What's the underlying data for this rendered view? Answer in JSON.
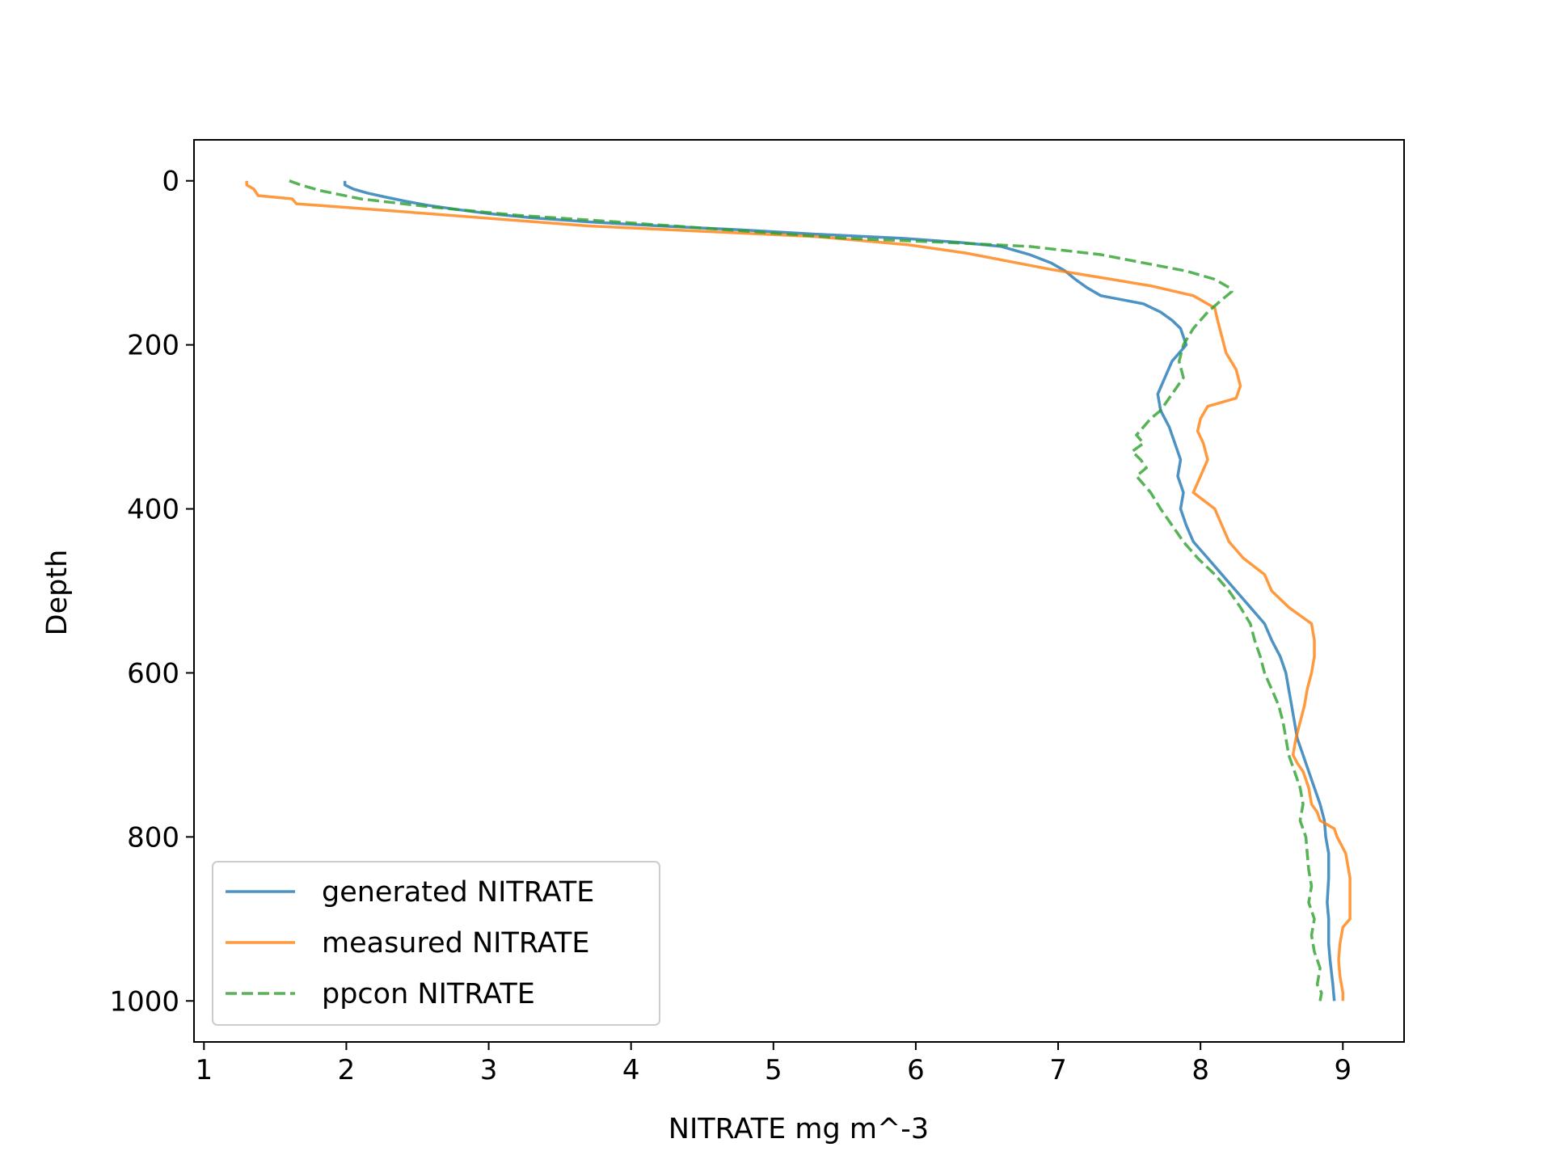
{
  "chart_data": {
    "type": "line",
    "title": "",
    "xlabel": "NITRATE mg m^-3",
    "ylabel": "Depth",
    "xlim": [
      0.93,
      9.43
    ],
    "ylim": [
      1050,
      -50
    ],
    "y_inverted": true,
    "xticks": [
      1,
      2,
      3,
      4,
      5,
      6,
      7,
      8,
      9
    ],
    "yticks": [
      0,
      200,
      400,
      600,
      800,
      1000
    ],
    "grid": false,
    "legend_position": "lower-left",
    "series": [
      {
        "name": "generated NITRATE",
        "color": "#1f77b4",
        "dash": "solid",
        "x": [
          1.99,
          1.99,
          2.05,
          2.15,
          2.28,
          2.42,
          2.58,
          2.78,
          3.0,
          3.3,
          3.7,
          4.2,
          4.8,
          5.3,
          5.9,
          6.3,
          6.6,
          6.8,
          6.95,
          7.05,
          7.12,
          7.2,
          7.3,
          7.45,
          7.6,
          7.72,
          7.8,
          7.86,
          7.88,
          7.9,
          7.85,
          7.8,
          7.75,
          7.7,
          7.72,
          7.78,
          7.82,
          7.86,
          7.84,
          7.88,
          7.86,
          7.9,
          7.95,
          8.05,
          8.15,
          8.25,
          8.35,
          8.45,
          8.5,
          8.56,
          8.6,
          8.62,
          8.64,
          8.66,
          8.68,
          8.72,
          8.76,
          8.8,
          8.84,
          8.87,
          8.88,
          8.9,
          8.9,
          8.89,
          8.9,
          8.9,
          8.91,
          8.93,
          8.94
        ],
        "y": [
          0,
          5,
          10,
          15,
          20,
          25,
          30,
          35,
          40,
          45,
          50,
          55,
          60,
          65,
          70,
          75,
          80,
          90,
          100,
          110,
          120,
          130,
          140,
          145,
          150,
          160,
          170,
          180,
          190,
          200,
          210,
          220,
          240,
          260,
          280,
          300,
          320,
          340,
          360,
          380,
          400,
          420,
          440,
          460,
          480,
          500,
          520,
          540,
          560,
          580,
          600,
          620,
          640,
          660,
          680,
          700,
          720,
          740,
          760,
          780,
          800,
          820,
          850,
          880,
          900,
          930,
          950,
          980,
          1000
        ]
      },
      {
        "name": "measured NITRATE",
        "color": "#ff7f0e",
        "dash": "solid",
        "x": [
          1.3,
          1.3,
          1.35,
          1.38,
          1.62,
          1.65,
          2.2,
          3.7,
          5.3,
          5.95,
          6.35,
          6.65,
          6.95,
          7.3,
          7.65,
          7.95,
          8.1,
          8.12,
          8.15,
          8.18,
          8.25,
          8.28,
          8.25,
          8.05,
          8.0,
          7.98,
          8.02,
          8.05,
          8.0,
          7.95,
          8.1,
          8.15,
          8.2,
          8.3,
          8.45,
          8.5,
          8.62,
          8.78,
          8.8,
          8.8,
          8.78,
          8.75,
          8.73,
          8.7,
          8.67,
          8.65,
          8.68,
          8.72,
          8.76,
          8.78,
          8.82,
          8.84,
          8.94,
          8.96,
          9.02,
          9.05,
          9.05,
          9.05,
          9.0,
          8.98,
          8.97,
          8.98,
          8.99,
          9.0,
          9.0
        ],
        "y": [
          0,
          5,
          10,
          18,
          22,
          28,
          35,
          55,
          68,
          78,
          88,
          98,
          108,
          118,
          128,
          140,
          155,
          170,
          190,
          210,
          230,
          250,
          265,
          275,
          290,
          305,
          320,
          340,
          360,
          380,
          400,
          420,
          440,
          460,
          480,
          500,
          520,
          540,
          560,
          580,
          600,
          620,
          640,
          660,
          680,
          700,
          710,
          720,
          740,
          760,
          770,
          780,
          790,
          800,
          820,
          850,
          880,
          900,
          910,
          930,
          950,
          970,
          980,
          990,
          1000
        ]
      },
      {
        "name": "ppcon NITRATE",
        "color": "#2ca02c",
        "dash": "dashed",
        "x": [
          1.6,
          1.68,
          1.82,
          2.1,
          2.6,
          3.2,
          3.9,
          4.7,
          5.5,
          6.2,
          6.8,
          7.3,
          7.6,
          7.9,
          8.1,
          8.2,
          8.22,
          8.15,
          8.05,
          7.95,
          7.88,
          7.85,
          7.88,
          7.8,
          7.72,
          7.65,
          7.6,
          7.55,
          7.6,
          7.52,
          7.58,
          7.62,
          7.55,
          7.65,
          7.72,
          7.8,
          7.88,
          7.98,
          8.1,
          8.2,
          8.28,
          8.35,
          8.38,
          8.42,
          8.45,
          8.5,
          8.55,
          8.58,
          8.6,
          8.62,
          8.66,
          8.7,
          8.72,
          8.7,
          8.74,
          8.75,
          8.76,
          8.78,
          8.76,
          8.8,
          8.78,
          8.8,
          8.82,
          8.84,
          8.83,
          8.82,
          8.85,
          8.84
        ],
        "y": [
          0,
          5,
          12,
          22,
          32,
          42,
          50,
          60,
          70,
          75,
          80,
          90,
          100,
          110,
          120,
          130,
          135,
          145,
          160,
          180,
          200,
          220,
          240,
          260,
          280,
          290,
          300,
          310,
          320,
          330,
          340,
          350,
          360,
          380,
          400,
          420,
          440,
          460,
          480,
          500,
          520,
          540,
          560,
          580,
          600,
          620,
          640,
          660,
          680,
          700,
          720,
          740,
          760,
          780,
          800,
          820,
          840,
          860,
          880,
          900,
          920,
          940,
          950,
          960,
          970,
          980,
          990,
          1000
        ]
      }
    ]
  }
}
